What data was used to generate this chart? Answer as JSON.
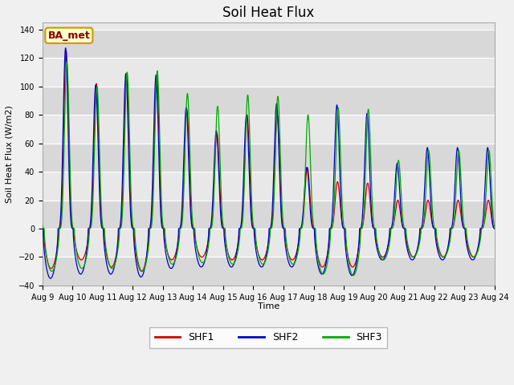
{
  "title": "Soil Heat Flux",
  "ylabel": "Soil Heat Flux (W/m2)",
  "xlabel": "Time",
  "ylim": [
    -40,
    145
  ],
  "yticks": [
    -40,
    -20,
    0,
    20,
    40,
    60,
    80,
    100,
    120,
    140
  ],
  "shf1_color": "#cc0000",
  "shf2_color": "#0000cc",
  "shf3_color": "#00aa00",
  "legend_label1": "SHF1",
  "legend_label2": "SHF2",
  "legend_label3": "SHF3",
  "annotation_text": "BA_met",
  "xtick_labels": [
    "Aug 9",
    "Aug 10",
    "Aug 11",
    "Aug 12",
    "Aug 13",
    "Aug 14",
    "Aug 15",
    "Aug 16",
    "Aug 17",
    "Aug 18",
    "Aug 19",
    "Aug 20",
    "Aug 21",
    "Aug 22",
    "Aug 23",
    "Aug 24"
  ],
  "num_days": 15,
  "hours_per_day": 24,
  "peak_hour": 13,
  "trough_hour": 4,
  "day_peaks_shf1": [
    125,
    102,
    109,
    107,
    84,
    67,
    80,
    80,
    43,
    33,
    32,
    20,
    20,
    20,
    20
  ],
  "day_peaks_shf2": [
    127,
    101,
    109,
    108,
    85,
    69,
    80,
    88,
    43,
    87,
    81,
    46,
    57,
    57,
    57
  ],
  "day_peaks_shf3": [
    117,
    100,
    110,
    111,
    95,
    86,
    94,
    93,
    80,
    85,
    84,
    48,
    55,
    55,
    55
  ],
  "day_troughs_shf1": [
    -28,
    -22,
    -27,
    -30,
    -22,
    -20,
    -22,
    -22,
    -22,
    -27,
    -27,
    -20,
    -20,
    -20,
    -20
  ],
  "day_troughs_shf2": [
    -35,
    -32,
    -32,
    -34,
    -28,
    -27,
    -27,
    -27,
    -27,
    -32,
    -33,
    -22,
    -22,
    -22,
    -22
  ],
  "day_troughs_shf3": [
    -30,
    -28,
    -28,
    -30,
    -25,
    -24,
    -25,
    -25,
    -25,
    -32,
    -33,
    -22,
    -20,
    -20,
    -20
  ],
  "shf1_phase": 0.0,
  "shf2_phase": 0.5,
  "shf3_phase": -0.5,
  "peak_sharpness": 4,
  "line_width": 0.9,
  "grid_color": "#ffffff",
  "bg_color": "#e8e8e8",
  "fig_color": "#f0f0f0",
  "band_light": "#e8e8e8",
  "band_dark": "#d8d8d8",
  "annotation_text_color": "#8B0000",
  "annotation_bg": "#ffffcc",
  "annotation_border": "#cc9900",
  "title_fontsize": 12,
  "label_fontsize": 8,
  "tick_fontsize": 7,
  "legend_fontsize": 9
}
